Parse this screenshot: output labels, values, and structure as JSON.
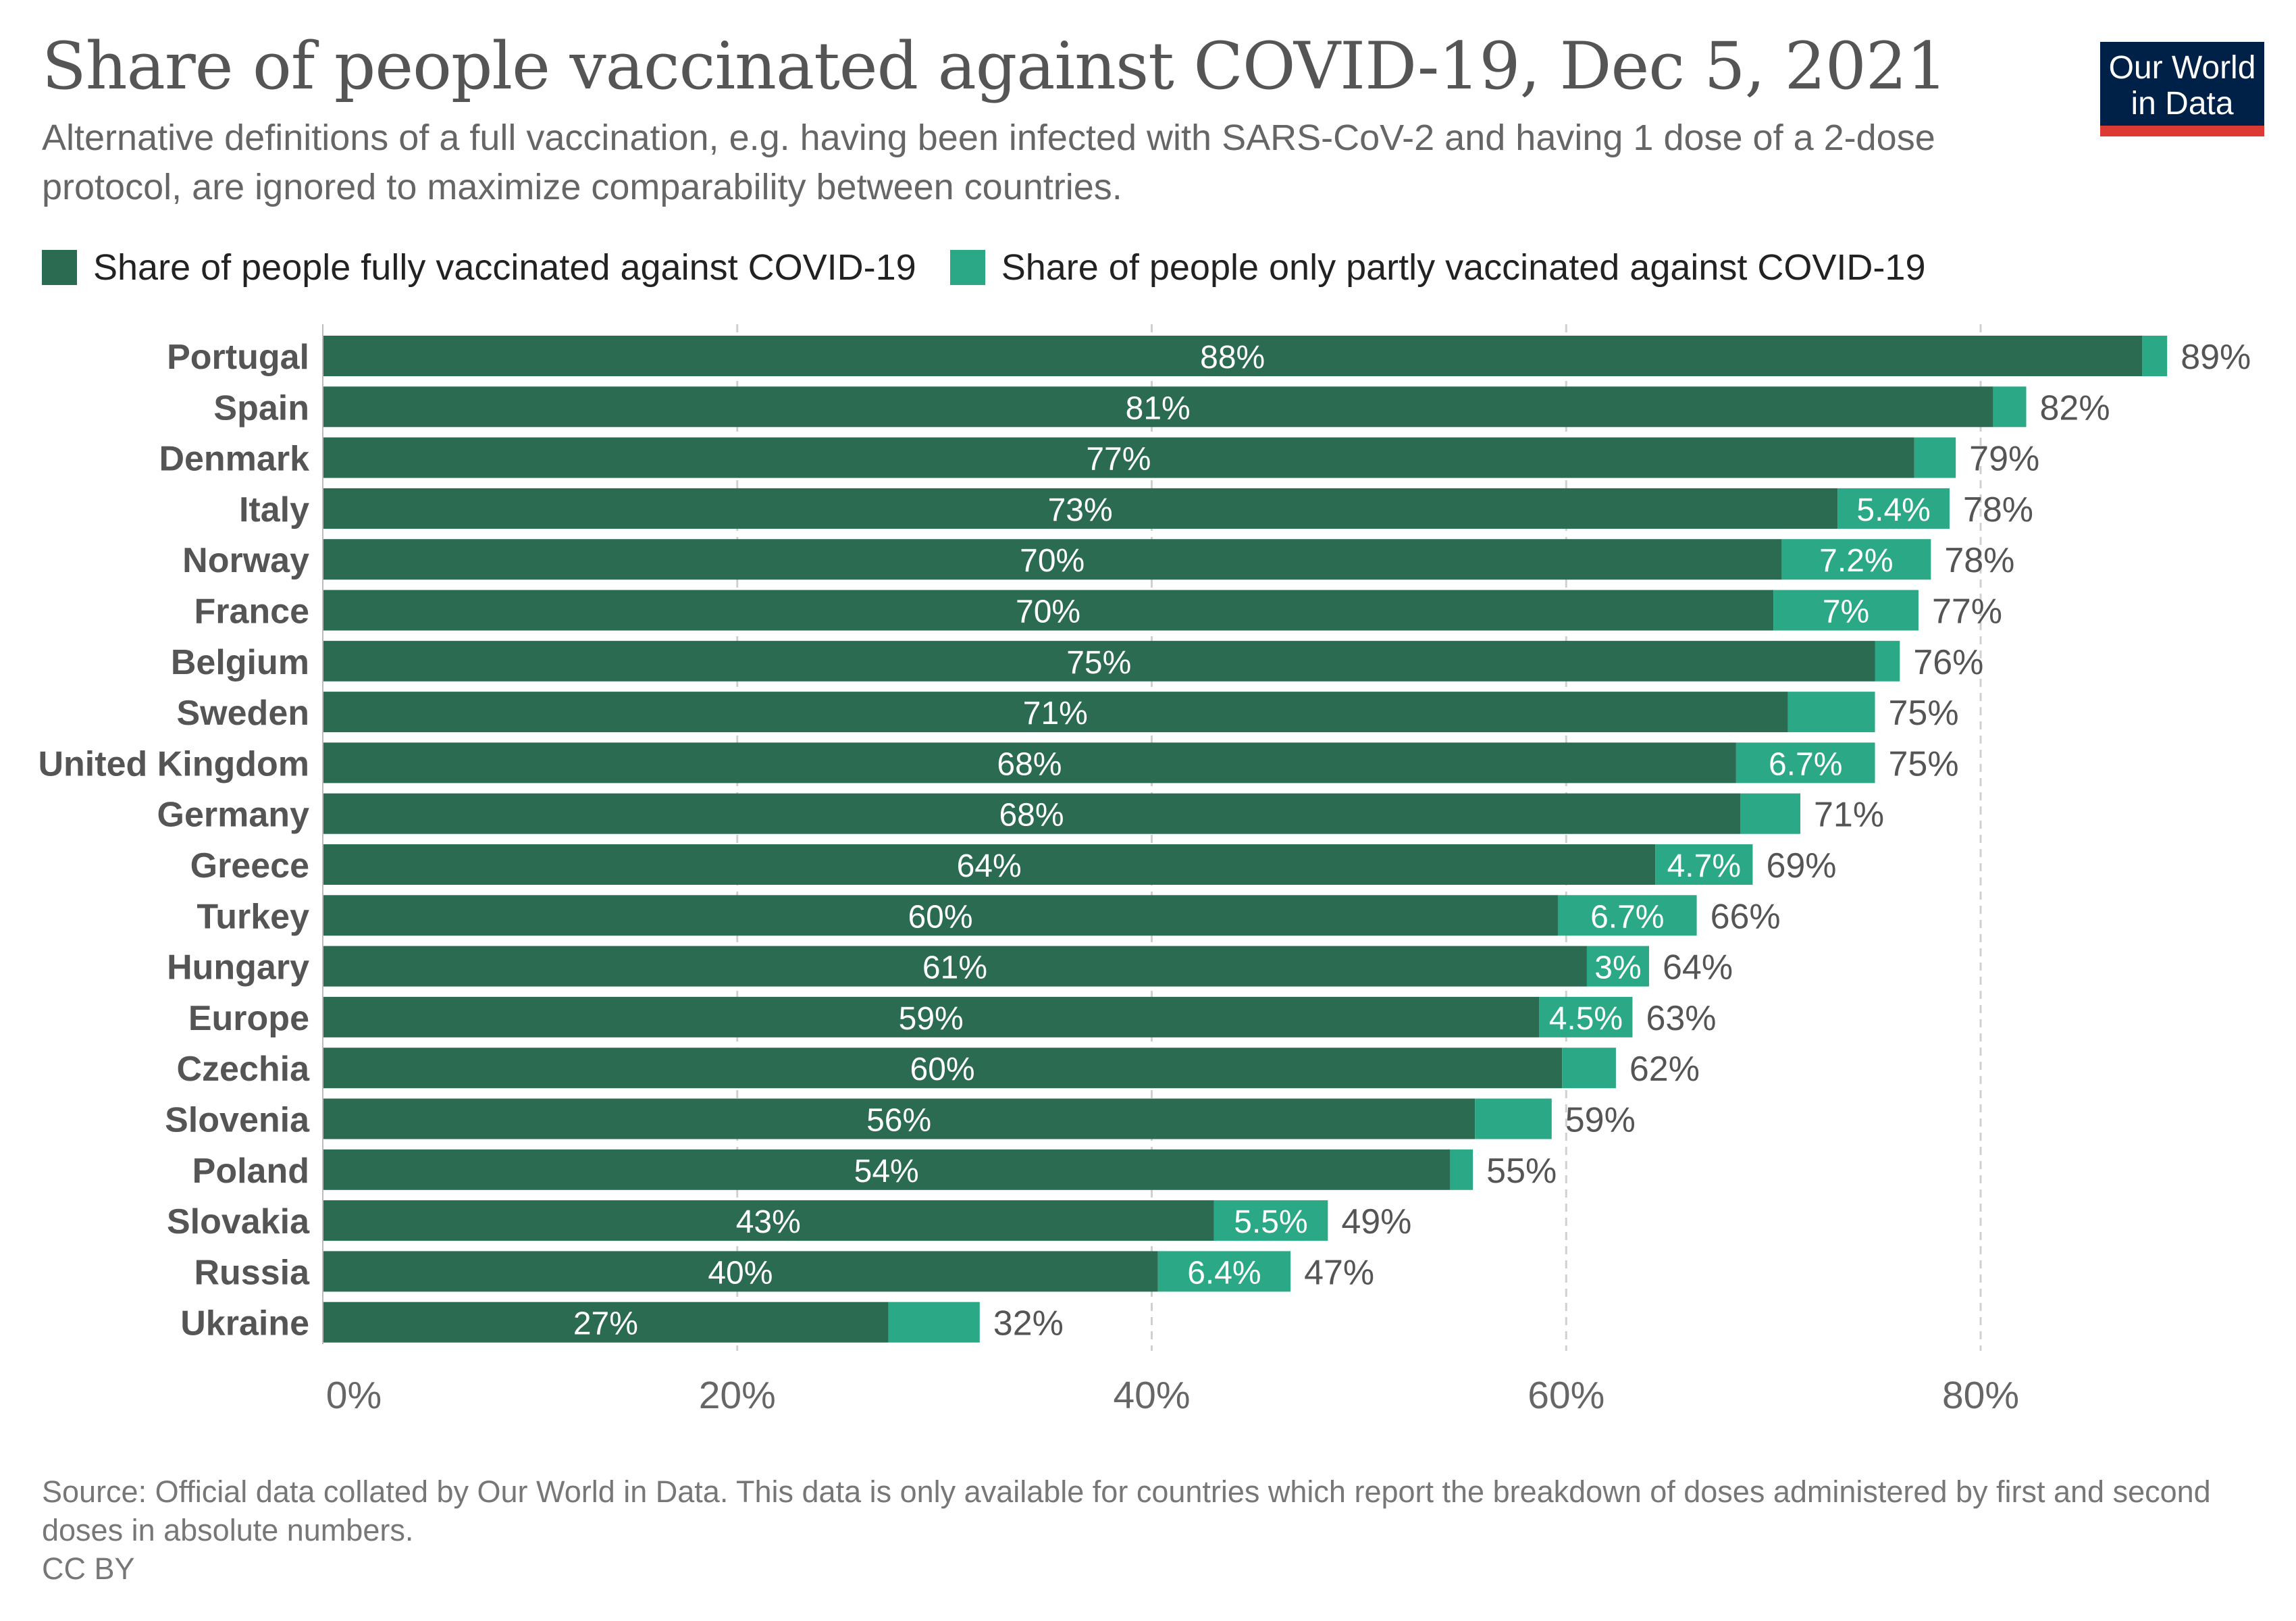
{
  "header": {
    "title": "Share of people vaccinated against COVID-19, Dec 5, 2021",
    "subtitle": "Alternative definitions of a full vaccination, e.g. having been infected with SARS-CoV-2 and having 1 dose of a 2-dose protocol, are ignored to maximize comparability between countries."
  },
  "logo": {
    "line1": "Our World",
    "line2": "in Data"
  },
  "colors": {
    "full": "#2a6b52",
    "partial": "#2ba886",
    "grid": "#d0d0d0",
    "axis_text": "#666666",
    "label_text": "#555555"
  },
  "legend": {
    "full_label": "Share of people fully vaccinated against COVID-19",
    "partial_label": "Share of people only partly vaccinated against COVID-19"
  },
  "chart_data": {
    "type": "bar",
    "orientation": "horizontal",
    "stacked": true,
    "title": "Share of people vaccinated against COVID-19, Dec 5, 2021",
    "categories": [
      "Portugal",
      "Spain",
      "Denmark",
      "Italy",
      "Norway",
      "France",
      "Belgium",
      "Sweden",
      "United Kingdom",
      "Germany",
      "Greece",
      "Turkey",
      "Hungary",
      "Europe",
      "Czechia",
      "Slovenia",
      "Poland",
      "Slovakia",
      "Russia",
      "Ukraine"
    ],
    "series": [
      {
        "name": "Share of people fully vaccinated against COVID-19",
        "values": [
          87.8,
          80.6,
          76.8,
          73.1,
          70.4,
          70.0,
          74.9,
          70.7,
          68.2,
          68.4,
          64.3,
          59.6,
          61.0,
          58.7,
          59.8,
          55.6,
          54.4,
          43.0,
          40.3,
          27.3
        ],
        "labels": [
          "88%",
          "81%",
          "77%",
          "73%",
          "70%",
          "70%",
          "75%",
          "71%",
          "68%",
          "68%",
          "64%",
          "60%",
          "61%",
          "59%",
          "60%",
          "56%",
          "54%",
          "43%",
          "40%",
          "27%"
        ]
      },
      {
        "name": "Share of people only partly vaccinated against COVID-19",
        "values": [
          1.2,
          1.6,
          2.0,
          5.4,
          7.2,
          7.0,
          1.2,
          4.2,
          6.7,
          2.9,
          4.7,
          6.7,
          3.0,
          4.5,
          2.6,
          3.7,
          1.1,
          5.5,
          6.4,
          4.4
        ],
        "labels": [
          "",
          "",
          "",
          "5.4%",
          "7.2%",
          "7%",
          "",
          "",
          "6.7%",
          "",
          "4.7%",
          "6.7%",
          "3%",
          "4.5%",
          "",
          "",
          "",
          "5.5%",
          "6.4%",
          ""
        ]
      }
    ],
    "totals": [
      "89%",
      "82%",
      "79%",
      "78%",
      "78%",
      "77%",
      "76%",
      "75%",
      "75%",
      "71%",
      "69%",
      "66%",
      "64%",
      "63%",
      "62%",
      "59%",
      "55%",
      "49%",
      "47%",
      "32%"
    ],
    "xlim": [
      0,
      80
    ],
    "xticks": [
      0,
      20,
      40,
      60,
      80
    ],
    "xtick_labels": [
      "0%",
      "20%",
      "40%",
      "60%",
      "80%"
    ],
    "xlabel": "",
    "ylabel": "",
    "grid": true
  },
  "footer": {
    "source": "Source: Official data collated by Our World in Data. This data is only available for countries which report the breakdown of doses administered by first and second doses in absolute numbers.",
    "license": "CC BY"
  }
}
